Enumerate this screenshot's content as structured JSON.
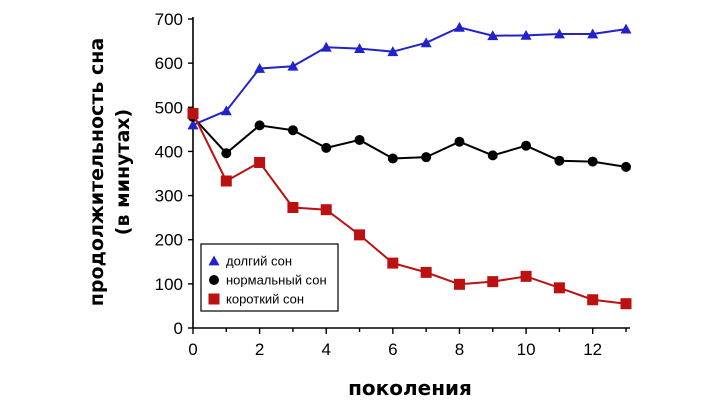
{
  "chart_data": {
    "type": "line",
    "x": [
      0,
      1,
      2,
      3,
      4,
      5,
      6,
      7,
      8,
      9,
      10,
      11,
      12,
      13
    ],
    "xlabel": "поколения",
    "ylabel_lines": [
      "продолжительность сна",
      "(в минутах)"
    ],
    "xlim": [
      0,
      13
    ],
    "ylim": [
      0,
      700
    ],
    "xticks": [
      "0",
      "2",
      "4",
      "6",
      "8",
      "10",
      "12"
    ],
    "yticks": [
      "0",
      "100",
      "200",
      "300",
      "400",
      "500",
      "600",
      "700"
    ],
    "grid": false,
    "legend_position": "bottom-left",
    "series": [
      {
        "name": "долгий сон",
        "color": "#2222cc",
        "marker": "triangle",
        "values": [
          460,
          492,
          588,
          593,
          636,
          633,
          626,
          646,
          681,
          662,
          663,
          666,
          666,
          677
        ]
      },
      {
        "name": "нормальный сон",
        "color": "#000000",
        "marker": "circle",
        "values": [
          478,
          396,
          459,
          448,
          408,
          426,
          384,
          387,
          422,
          391,
          413,
          379,
          377,
          365
        ]
      },
      {
        "name": "короткий сон",
        "color": "#bb1111",
        "marker": "square",
        "values": [
          486,
          333,
          375,
          273,
          268,
          211,
          147,
          126,
          99,
          105,
          117,
          91,
          64,
          55
        ]
      }
    ]
  }
}
